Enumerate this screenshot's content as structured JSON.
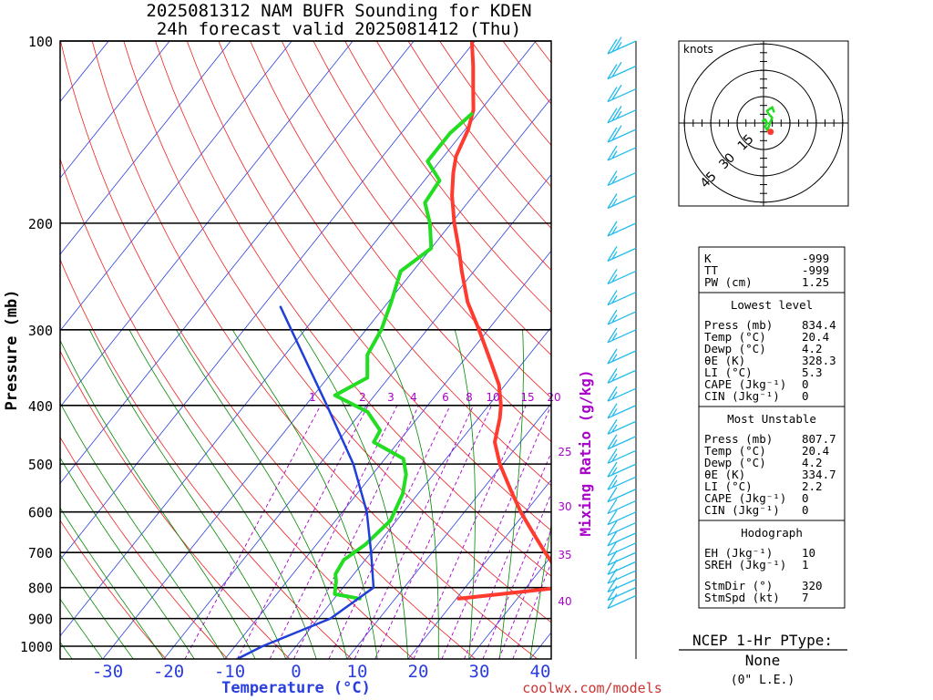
{
  "title": {
    "line1": "2025081312 NAM BUFR Sounding for KDEN",
    "line2": "24h forecast valid 2025081412 (Thu)"
  },
  "footer": {
    "credit": "coolwx.com/models"
  },
  "chart_data": {
    "type": "line",
    "subtype": "skew-t log-p",
    "xlabel": "Temperature (°C)",
    "ylabel": "Pressure (mb)",
    "xticks": [
      -30,
      -20,
      -10,
      0,
      10,
      20,
      30,
      40
    ],
    "yticks": [
      100,
      200,
      300,
      400,
      500,
      600,
      700,
      800,
      900,
      1000
    ],
    "mixing_ratio": {
      "label": "Mixing Ratio (g/kg)",
      "top_labels": [
        "1",
        "2",
        "3",
        "4",
        "6",
        "8",
        "10",
        "15",
        "20"
      ],
      "side_labels": [
        "25",
        "30",
        "35",
        "40"
      ]
    },
    "colors": {
      "temperature": "#ff3b30",
      "dewpoint": "#22dd22",
      "parcel": "#1f3fd8",
      "isotherm": "#2a3ee0",
      "dry_adiabat": "#ee2222",
      "moist_adiabat": "#008800",
      "mixing_ratio": "#aa00cc",
      "wind_barb": "#22bbee"
    },
    "series": [
      {
        "name": "Temperature",
        "points": [
          {
            "p": 834.4,
            "t": 20.4
          },
          {
            "p": 800,
            "t": 35.6
          },
          {
            "p": 760,
            "t": 33.8
          },
          {
            "p": 700,
            "t": 28.5
          },
          {
            "p": 650,
            "t": 24.0
          },
          {
            "p": 600,
            "t": 19.2
          },
          {
            "p": 550,
            "t": 14.5
          },
          {
            "p": 500,
            "t": 9.5
          },
          {
            "p": 460,
            "t": 5.8
          },
          {
            "p": 420,
            "t": 3.5
          },
          {
            "p": 400,
            "t": 2.0
          },
          {
            "p": 370,
            "t": -1.0
          },
          {
            "p": 340,
            "t": -5.2
          },
          {
            "p": 300,
            "t": -11.5
          },
          {
            "p": 270,
            "t": -17.0
          },
          {
            "p": 240,
            "t": -22.0
          },
          {
            "p": 220,
            "t": -25.5
          },
          {
            "p": 200,
            "t": -29.5
          },
          {
            "p": 180,
            "t": -33.5
          },
          {
            "p": 165,
            "t": -36.3
          },
          {
            "p": 155,
            "t": -38.0
          },
          {
            "p": 140,
            "t": -39.5
          },
          {
            "p": 130,
            "t": -41.2
          },
          {
            "p": 120,
            "t": -44.0
          },
          {
            "p": 110,
            "t": -47.0
          },
          {
            "p": 100,
            "t": -50.5
          }
        ]
      },
      {
        "name": "Dewpoint",
        "points": [
          {
            "p": 834.4,
            "t": 4.2
          },
          {
            "p": 820,
            "t": -0.5
          },
          {
            "p": 780,
            "t": -2.0
          },
          {
            "p": 760,
            "t": -3.0
          },
          {
            "p": 720,
            "t": -3.5
          },
          {
            "p": 680,
            "t": -2.0
          },
          {
            "p": 620,
            "t": -1.0
          },
          {
            "p": 560,
            "t": -2.5
          },
          {
            "p": 520,
            "t": -4.5
          },
          {
            "p": 490,
            "t": -7.0
          },
          {
            "p": 460,
            "t": -14.0
          },
          {
            "p": 440,
            "t": -14.5
          },
          {
            "p": 410,
            "t": -19.0
          },
          {
            "p": 385,
            "t": -26.5
          },
          {
            "p": 360,
            "t": -23.5
          },
          {
            "p": 330,
            "t": -26.5
          },
          {
            "p": 300,
            "t": -27.5
          },
          {
            "p": 270,
            "t": -29.5
          },
          {
            "p": 240,
            "t": -32.0
          },
          {
            "p": 220,
            "t": -30.0
          },
          {
            "p": 200,
            "t": -33.5
          },
          {
            "p": 185,
            "t": -37.0
          },
          {
            "p": 170,
            "t": -37.5
          },
          {
            "p": 158,
            "t": -42.0
          },
          {
            "p": 142,
            "t": -42.0
          },
          {
            "p": 132,
            "t": -41.0
          }
        ]
      },
      {
        "name": "Parcel",
        "points": [
          {
            "p": 1050,
            "t": -8.0
          },
          {
            "p": 1000,
            "t": -5.5
          },
          {
            "p": 900,
            "t": 2.0
          },
          {
            "p": 800,
            "t": 5.0
          },
          {
            "p": 700,
            "t": 0.0
          },
          {
            "p": 600,
            "t": -6.0
          },
          {
            "p": 500,
            "t": -14.5
          },
          {
            "p": 400,
            "t": -26.5
          },
          {
            "p": 275,
            "t": -47.0
          }
        ]
      }
    ],
    "wind_barbs": [
      {
        "p": 100,
        "kt": 25
      },
      {
        "p": 110,
        "kt": 20
      },
      {
        "p": 120,
        "kt": 20
      },
      {
        "p": 130,
        "kt": 25
      },
      {
        "p": 140,
        "kt": 20
      },
      {
        "p": 150,
        "kt": 15
      },
      {
        "p": 165,
        "kt": 15
      },
      {
        "p": 180,
        "kt": 15
      },
      {
        "p": 200,
        "kt": 15
      },
      {
        "p": 220,
        "kt": 15
      },
      {
        "p": 240,
        "kt": 15
      },
      {
        "p": 260,
        "kt": 15
      },
      {
        "p": 280,
        "kt": 15
      },
      {
        "p": 300,
        "kt": 15
      },
      {
        "p": 325,
        "kt": 15
      },
      {
        "p": 350,
        "kt": 15
      },
      {
        "p": 375,
        "kt": 15
      },
      {
        "p": 400,
        "kt": 15
      },
      {
        "p": 425,
        "kt": 15
      },
      {
        "p": 450,
        "kt": 15
      },
      {
        "p": 475,
        "kt": 15
      },
      {
        "p": 500,
        "kt": 15
      },
      {
        "p": 525,
        "kt": 15
      },
      {
        "p": 550,
        "kt": 10
      },
      {
        "p": 575,
        "kt": 10
      },
      {
        "p": 600,
        "kt": 10
      },
      {
        "p": 625,
        "kt": 10
      },
      {
        "p": 650,
        "kt": 10
      },
      {
        "p": 675,
        "kt": 10
      },
      {
        "p": 700,
        "kt": 10
      },
      {
        "p": 725,
        "kt": 10
      },
      {
        "p": 750,
        "kt": 10
      },
      {
        "p": 775,
        "kt": 10
      },
      {
        "p": 800,
        "kt": 10
      },
      {
        "p": 825,
        "kt": 10
      }
    ],
    "hodograph": {
      "units_label": "knots",
      "rings_kt": [
        15,
        30,
        45
      ],
      "ring_labels": [
        "15",
        "30",
        "45"
      ],
      "trace": [
        {
          "u": -1,
          "v": 1
        },
        {
          "u": 1,
          "v": 2
        },
        {
          "u": 2,
          "v": 0
        },
        {
          "u": 1,
          "v": -2
        },
        {
          "u": 2,
          "v": -4
        },
        {
          "u": 3,
          "v": -2
        },
        {
          "u": 4,
          "v": 1
        },
        {
          "u": 5,
          "v": 3
        },
        {
          "u": 3,
          "v": 5
        },
        {
          "u": 2,
          "v": 7
        },
        {
          "u": 5,
          "v": 9
        },
        {
          "u": 6,
          "v": 6
        }
      ],
      "storm_motion": {
        "u": 4,
        "v": -5
      }
    }
  },
  "indices": {
    "top": [
      {
        "label": "K",
        "value": "-999"
      },
      {
        "label": "TT",
        "value": "-999"
      },
      {
        "label": "PW (cm)",
        "value": "1.25"
      }
    ],
    "lowest": {
      "heading": "Lowest level",
      "rows": [
        {
          "label": "Press (mb)",
          "value": "834.4"
        },
        {
          "label": "Temp (°C)",
          "value": "20.4"
        },
        {
          "label": "Dewp (°C)",
          "value": "4.2"
        },
        {
          "label": "θE (K)",
          "value": "328.3"
        },
        {
          "label": "LI (°C)",
          "value": "5.3"
        },
        {
          "label": "CAPE (Jkg⁻¹)",
          "value": "0"
        },
        {
          "label": "CIN (Jkg⁻¹)",
          "value": "0"
        }
      ]
    },
    "unstable": {
      "heading": "Most Unstable",
      "rows": [
        {
          "label": "Press (mb)",
          "value": "807.7"
        },
        {
          "label": "Temp (°C)",
          "value": "20.4"
        },
        {
          "label": "Dewp (°C)",
          "value": "4.2"
        },
        {
          "label": "θE (K)",
          "value": "334.7"
        },
        {
          "label": "LI (°C)",
          "value": "2.2"
        },
        {
          "label": "CAPE (Jkg⁻¹)",
          "value": "0"
        },
        {
          "label": "CIN (Jkg⁻¹)",
          "value": "0"
        }
      ]
    },
    "hodo": {
      "heading": "Hodograph",
      "rows": [
        {
          "label": "EH (Jkg⁻¹)",
          "value": "10"
        },
        {
          "label": "SREH (Jkg⁻¹)",
          "value": "1"
        },
        {
          "label": "StmDir (°)",
          "value": "320"
        },
        {
          "label": "StmSpd (kt)",
          "value": "7"
        }
      ]
    }
  },
  "ptype": {
    "title": "NCEP 1-Hr PType:",
    "value": "None",
    "sub": "(0\" L.E.)"
  }
}
